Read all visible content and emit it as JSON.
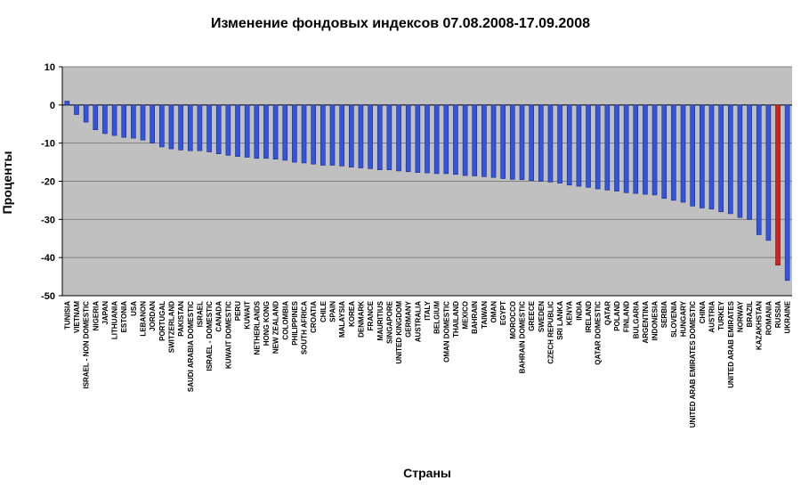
{
  "chart_data": {
    "type": "bar",
    "title": "Изменение фондовых индексов 07.08.2008-17.09.2008",
    "xlabel": "Страны",
    "ylabel": "Проценты",
    "ylim": [
      -50,
      10
    ],
    "yticks": [
      10,
      0,
      -10,
      -20,
      -30,
      -40,
      -50
    ],
    "grid": true,
    "legend": "none",
    "colors": {
      "bar": "#3355dd",
      "highlight": "#cc2222",
      "plot_bg": "#c0c0c0",
      "grid": "#808080"
    },
    "highlight_category": "RUSSIA",
    "categories": [
      "TUNISIA",
      "VIETNAM",
      "ISRAEL - NON DOMESTIC",
      "NIGERIA",
      "JAPAN",
      "LITHUANIA",
      "ESTONIA",
      "USA",
      "LEBANON",
      "JORDAN",
      "PORTUGAL",
      "SWITZERLAND",
      "PAKISTAN",
      "SAUDI ARABIA DOMESTIC",
      "ISRAEL",
      "ISRAEL - DOMESTIC",
      "CANADA",
      "KUWAIT DOMESTIC",
      "PERU",
      "KUWAIT",
      "NETHERLANDS",
      "HONG KONG",
      "NEW ZEALAND",
      "COLOMBIA",
      "PHILIPPINES",
      "SOUTH AFRICA",
      "CROATIA",
      "CHILE",
      "SPAIN",
      "MALAYSIA",
      "KOREA",
      "DENMARK",
      "FRANCE",
      "MAURITIUS",
      "SINGAPORE",
      "UNITED KINGDOM",
      "GERMANY",
      "AUSTRALIA",
      "ITALY",
      "BELGIUM",
      "OMAN DOMESTIC",
      "THAILAND",
      "MEXICO",
      "BAHRAIN",
      "TAIWAN",
      "OMAN",
      "EGYPT",
      "MOROCCO",
      "BAHRAIN DOMESTIC",
      "GREECE",
      "SWEDEN",
      "CZECH REPUBLIC",
      "SRI LANKA",
      "KENYA",
      "INDIA",
      "IRELAND",
      "QATAR DOMESTIC",
      "QATAR",
      "POLAND",
      "FINLAND",
      "BULGARIA",
      "ARGENTINA",
      "INDONESIA",
      "SERBIA",
      "SLOVENIA",
      "HUNGARY",
      "UNITED ARAB EMIRATES DOMESTIC",
      "CHINA",
      "AUSTRIA",
      "TURKEY",
      "UNITED ARAB EMIRATES",
      "NORWAY",
      "BRAZIL",
      "KAZAKHSTAN",
      "ROMANIA",
      "RUSSIA",
      "UKRAINE"
    ],
    "values": [
      1,
      -2.5,
      -4.5,
      -6.5,
      -7.5,
      -8,
      -8.5,
      -8.7,
      -9.2,
      -10,
      -11,
      -11.5,
      -11.8,
      -12,
      -12,
      -12.3,
      -12.8,
      -13.2,
      -13.5,
      -13.7,
      -14,
      -14,
      -14.2,
      -14.5,
      -15,
      -15.2,
      -15.5,
      -15.8,
      -15.8,
      -16,
      -16.3,
      -16.5,
      -16.7,
      -17,
      -17,
      -17.3,
      -17.5,
      -17.7,
      -17.8,
      -18,
      -18,
      -18.2,
      -18.5,
      -18.6,
      -18.8,
      -19,
      -19.3,
      -19.5,
      -19.6,
      -19.8,
      -20,
      -20.2,
      -20.5,
      -21,
      -21.3,
      -21.6,
      -22,
      -22.3,
      -22.6,
      -23,
      -23.2,
      -23.4,
      -23.6,
      -24.5,
      -25,
      -25.5,
      -26.5,
      -27,
      -27.3,
      -28,
      -28.5,
      -29.5,
      -30,
      -34,
      -35.5,
      -42,
      -46
    ]
  }
}
